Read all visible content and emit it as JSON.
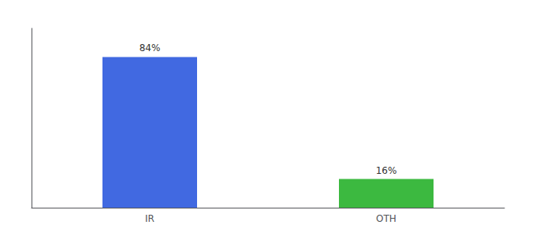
{
  "chart_data": {
    "type": "bar",
    "categories": [
      "IR",
      "OTH"
    ],
    "values": [
      84,
      16
    ],
    "value_labels": [
      "84%",
      "16%"
    ],
    "colors": [
      "#4169e1",
      "#3cb940"
    ],
    "ylim": [
      0,
      100
    ],
    "data_labels": true,
    "tick_labels": "x",
    "grid": false
  }
}
